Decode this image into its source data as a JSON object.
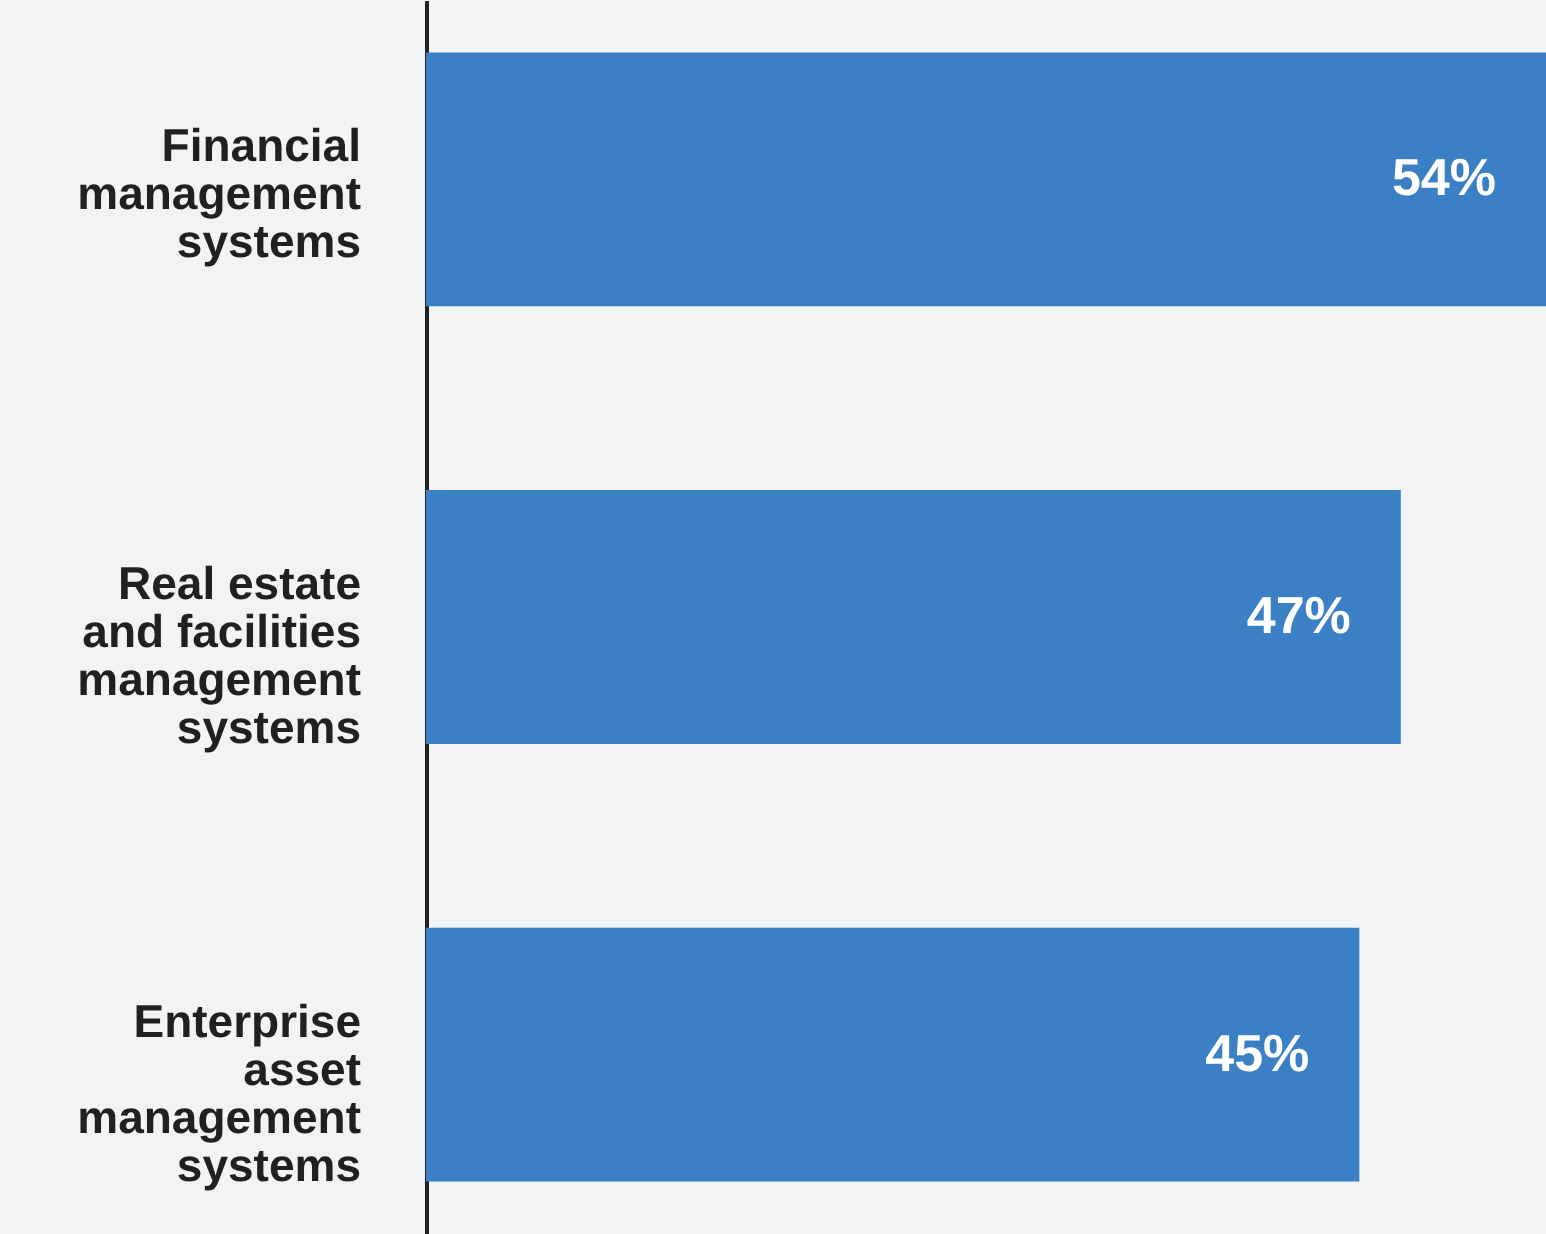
{
  "chart_data": {
    "type": "bar",
    "orientation": "horizontal",
    "data_labels": true,
    "categories": [
      "Financial management systems",
      "Real estate and facilities management systems",
      "Enterprise asset management systems"
    ],
    "values": [
      54,
      47,
      45
    ],
    "value_labels": [
      "54%",
      "47%",
      "45%"
    ],
    "color": "#3b7fc4"
  }
}
